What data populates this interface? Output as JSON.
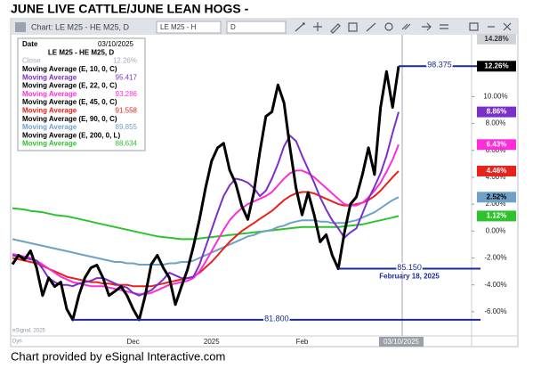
{
  "chart_data": {
    "type": "line",
    "title": "JUNE LIVE CATTLE/JUNE LEAN HOGS -",
    "footer": "Chart provided by eSignal Interactive.com",
    "toolbar": {
      "caption": "Chart: LE M25 - HE M25, D",
      "symbol_input": "LE M25 - H",
      "interval_input": "D"
    },
    "watermark": "eSignal, 2025",
    "mode": "Dyn",
    "legend": {
      "date_label": "Date",
      "date": "03/10/2025",
      "close_label": "Close",
      "close": "12.26%"
    },
    "categories": [
      null,
      null,
      null,
      null,
      null,
      null,
      null,
      null,
      null,
      null,
      null,
      null,
      null,
      null,
      null,
      null,
      null,
      null,
      null,
      null,
      "Dec",
      null,
      null,
      null,
      null,
      null,
      null,
      null,
      null,
      null,
      null,
      null,
      null,
      "2025",
      null,
      null,
      null,
      null,
      null,
      null,
      null,
      null,
      null,
      null,
      null,
      null,
      null,
      null,
      "Feb",
      null,
      null,
      null,
      null,
      null,
      null,
      null,
      null,
      null,
      null,
      null,
      null,
      null,
      null,
      null,
      "03/10/2025"
    ],
    "ylim": [
      -7.8,
      14.6
    ],
    "yticks": [
      {
        "value": 10,
        "label": "10.00%"
      },
      {
        "value": 8,
        "label": "8.00%"
      },
      {
        "value": 6,
        "label": "6.00%"
      },
      {
        "value": 4,
        "label": "4.00%"
      },
      {
        "value": 2,
        "label": "2.00%"
      },
      {
        "value": 0,
        "label": "0.00%"
      },
      {
        "value": -2,
        "label": "-2.00%"
      },
      {
        "value": -4,
        "label": "-4.00%"
      },
      {
        "value": -6,
        "label": "-6.00%"
      }
    ],
    "grid": false,
    "series": [
      {
        "name": "LE M25 - HE M25, D",
        "color": "#000000",
        "width": 3,
        "values": [
          -2.47,
          -1.8,
          -2.13,
          -1.47,
          -2.73,
          -4.8,
          -3.47,
          -4.13,
          -3.8,
          -5.8,
          -6.6,
          -4.8,
          -3.47,
          -2.73,
          -2.53,
          -3.47,
          -4.8,
          -4.47,
          -4.13,
          -4.8,
          -5.8,
          -6.6,
          -4.8,
          -2.47,
          -1.8,
          -2.73,
          -3.47,
          -5.47,
          -4.13,
          -2.87,
          -1.13,
          0.87,
          3.2,
          5.2,
          6.2,
          6.53,
          4.53,
          3.53,
          1.87,
          0.87,
          2.87,
          5.87,
          8.53,
          8.87,
          10.87,
          9.53,
          6.2,
          3.2,
          1.2,
          2.87,
          1.2,
          -0.8,
          -0.27,
          -1.8,
          -2.8,
          -0.13,
          2,
          2.53,
          4.2,
          6.2,
          4.2,
          9.2,
          11.87,
          9.2,
          12.26
        ]
      },
      {
        "name": "Moving Average (E, 10, 0, C)",
        "color": "#7a2fc8",
        "width": 2,
        "legend_label": "Moving Average",
        "legend_value": "95.417",
        "values": [
          -1.8,
          -1.9,
          -2.0,
          -2.1,
          -2.2,
          -2.8,
          -3.5,
          -3.8,
          -4.0,
          -4.0,
          -4.1,
          -3.9,
          -3.8,
          -3.7,
          -3.5,
          -3.5,
          -3.7,
          -3.9,
          -4.1,
          -4.2,
          -4.6,
          -4.8,
          -4.6,
          -4.4,
          -4.0,
          -3.6,
          -3.1,
          -3.3,
          -3.5,
          -3.5,
          -3.4,
          -2.5,
          -1.2,
          0.1,
          1.4,
          2.6,
          3.4,
          3.9,
          3.8,
          3.6,
          3.2,
          2.6,
          3.0,
          3.9,
          5.0,
          6.3,
          7.1,
          6.7,
          5.6,
          4.6,
          3.6,
          2.5,
          1.6,
          0.8,
          0.2,
          -0.5,
          -0.1,
          0.2,
          1.3,
          2.4,
          3.3,
          4.3,
          5.6,
          7.3,
          8.86
        ]
      },
      {
        "name": "Moving Average (E, 22, 0, C)",
        "color": "#ff2dd9",
        "width": 2,
        "legend_label": "Moving Average",
        "legend_value": "93.286",
        "values": [
          -1.7,
          -1.8,
          -1.9,
          -2.0,
          -2.2,
          -2.5,
          -2.8,
          -3.1,
          -3.4,
          -3.6,
          -3.8,
          -3.9,
          -4.0,
          -4.1,
          -4.1,
          -4.1,
          -4.2,
          -4.3,
          -4.4,
          -4.5,
          -4.6,
          -4.7,
          -4.7,
          -4.6,
          -4.4,
          -4.2,
          -4.0,
          -3.9,
          -3.8,
          -3.7,
          -3.5,
          -3.0,
          -2.3,
          -1.5,
          -0.7,
          0.1,
          0.8,
          1.3,
          1.7,
          2.0,
          2.2,
          2.4,
          2.6,
          2.9,
          3.4,
          3.9,
          4.3,
          4.5,
          4.5,
          4.3,
          4.0,
          3.6,
          3.2,
          2.8,
          2.4,
          2.0,
          1.9,
          1.9,
          2.1,
          2.5,
          3.0,
          3.6,
          4.4,
          5.3,
          6.43
        ]
      },
      {
        "name": "Moving Average (E, 45, 0, C)",
        "color": "#e8211a",
        "width": 2,
        "legend_label": "Moving Average",
        "legend_value": "91.558",
        "values": [
          -2.0,
          -2.1,
          -2.2,
          -2.3,
          -2.4,
          -2.6,
          -2.8,
          -3.0,
          -3.2,
          -3.4,
          -3.5,
          -3.6,
          -3.7,
          -3.8,
          -3.8,
          -3.9,
          -3.9,
          -4.0,
          -4.0,
          -4.0,
          -4.1,
          -4.1,
          -4.1,
          -4.1,
          -4.0,
          -3.9,
          -3.8,
          -3.7,
          -3.6,
          -3.5,
          -3.4,
          -3.1,
          -2.7,
          -2.3,
          -1.8,
          -1.3,
          -0.8,
          -0.4,
          0.0,
          0.3,
          0.6,
          0.9,
          1.2,
          1.5,
          1.9,
          2.3,
          2.6,
          2.8,
          2.9,
          2.9,
          2.8,
          2.6,
          2.4,
          2.2,
          2.0,
          1.9,
          1.9,
          2.0,
          2.1,
          2.3,
          2.6,
          3.0,
          3.5,
          4.0,
          4.46
        ]
      },
      {
        "name": "Moving Average (E, 90, 0, C)",
        "color": "#6fa0c8",
        "width": 2,
        "legend_label": "Moving Average",
        "legend_value": "89.855",
        "values": [
          -0.6,
          -0.7,
          -0.8,
          -0.9,
          -1.0,
          -1.1,
          -1.2,
          -1.3,
          -1.4,
          -1.5,
          -1.6,
          -1.7,
          -1.8,
          -1.9,
          -2.0,
          -2.1,
          -2.2,
          -2.3,
          -2.3,
          -2.4,
          -2.4,
          -2.5,
          -2.5,
          -2.5,
          -2.5,
          -2.5,
          -2.4,
          -2.4,
          -2.3,
          -2.3,
          -2.2,
          -2.0,
          -1.8,
          -1.6,
          -1.4,
          -1.2,
          -1.0,
          -0.8,
          -0.6,
          -0.4,
          -0.3,
          -0.1,
          0.0,
          0.1,
          0.3,
          0.4,
          0.6,
          0.7,
          0.8,
          0.8,
          0.8,
          0.7,
          0.7,
          0.6,
          0.6,
          0.6,
          0.7,
          0.8,
          1.0,
          1.2,
          1.4,
          1.7,
          2.0,
          2.3,
          2.52
        ]
      },
      {
        "name": "Moving Average (E, 200, 0, L)",
        "color": "#2fc22f",
        "width": 2,
        "legend_label": "Moving Average",
        "legend_value": "88.634",
        "values": [
          1.7,
          1.65,
          1.6,
          1.5,
          1.45,
          1.4,
          1.3,
          1.2,
          1.15,
          1.1,
          1.0,
          0.9,
          0.8,
          0.7,
          0.6,
          0.5,
          0.4,
          0.3,
          0.2,
          0.1,
          0.0,
          -0.1,
          -0.2,
          -0.3,
          -0.4,
          -0.45,
          -0.5,
          -0.55,
          -0.6,
          -0.6,
          -0.6,
          -0.55,
          -0.5,
          -0.45,
          -0.4,
          -0.35,
          -0.3,
          -0.25,
          -0.2,
          -0.15,
          -0.1,
          -0.05,
          0.0,
          0.05,
          0.1,
          0.15,
          0.2,
          0.25,
          0.3,
          0.3,
          0.3,
          0.3,
          0.3,
          0.3,
          0.3,
          0.35,
          0.4,
          0.45,
          0.5,
          0.6,
          0.7,
          0.8,
          0.9,
          1.0,
          1.12
        ]
      }
    ],
    "markers": [
      {
        "value": 14.28,
        "label": "14.28%",
        "color": "#cfd3d8",
        "text_color": "#333333"
      },
      {
        "value": 12.26,
        "label": "12.26%",
        "color": "#000000",
        "text_color": "#ffffff"
      },
      {
        "value": 8.86,
        "label": "8.86%",
        "color": "#7a2fc8",
        "text_color": "#ffffff"
      },
      {
        "value": 6.43,
        "label": "6.43%",
        "color": "#ff2dd9",
        "text_color": "#ffffff"
      },
      {
        "value": 4.46,
        "label": "4.46%",
        "color": "#e8211a",
        "text_color": "#ffffff"
      },
      {
        "value": 2.52,
        "label": "2.52%",
        "color": "#6fa0c8",
        "text_color": "#000000"
      },
      {
        "value": 1.12,
        "label": "1.12%",
        "color": "#2fc22f",
        "text_color": "#ffffff"
      }
    ],
    "annotations": [
      {
        "value": 12.26,
        "label": "98.375"
      },
      {
        "value": -2.8,
        "label": "85.150",
        "note": "February 18, 2025"
      },
      {
        "value": -6.6,
        "label": "81.800"
      }
    ],
    "annotation_color": "#1a2a9a"
  }
}
